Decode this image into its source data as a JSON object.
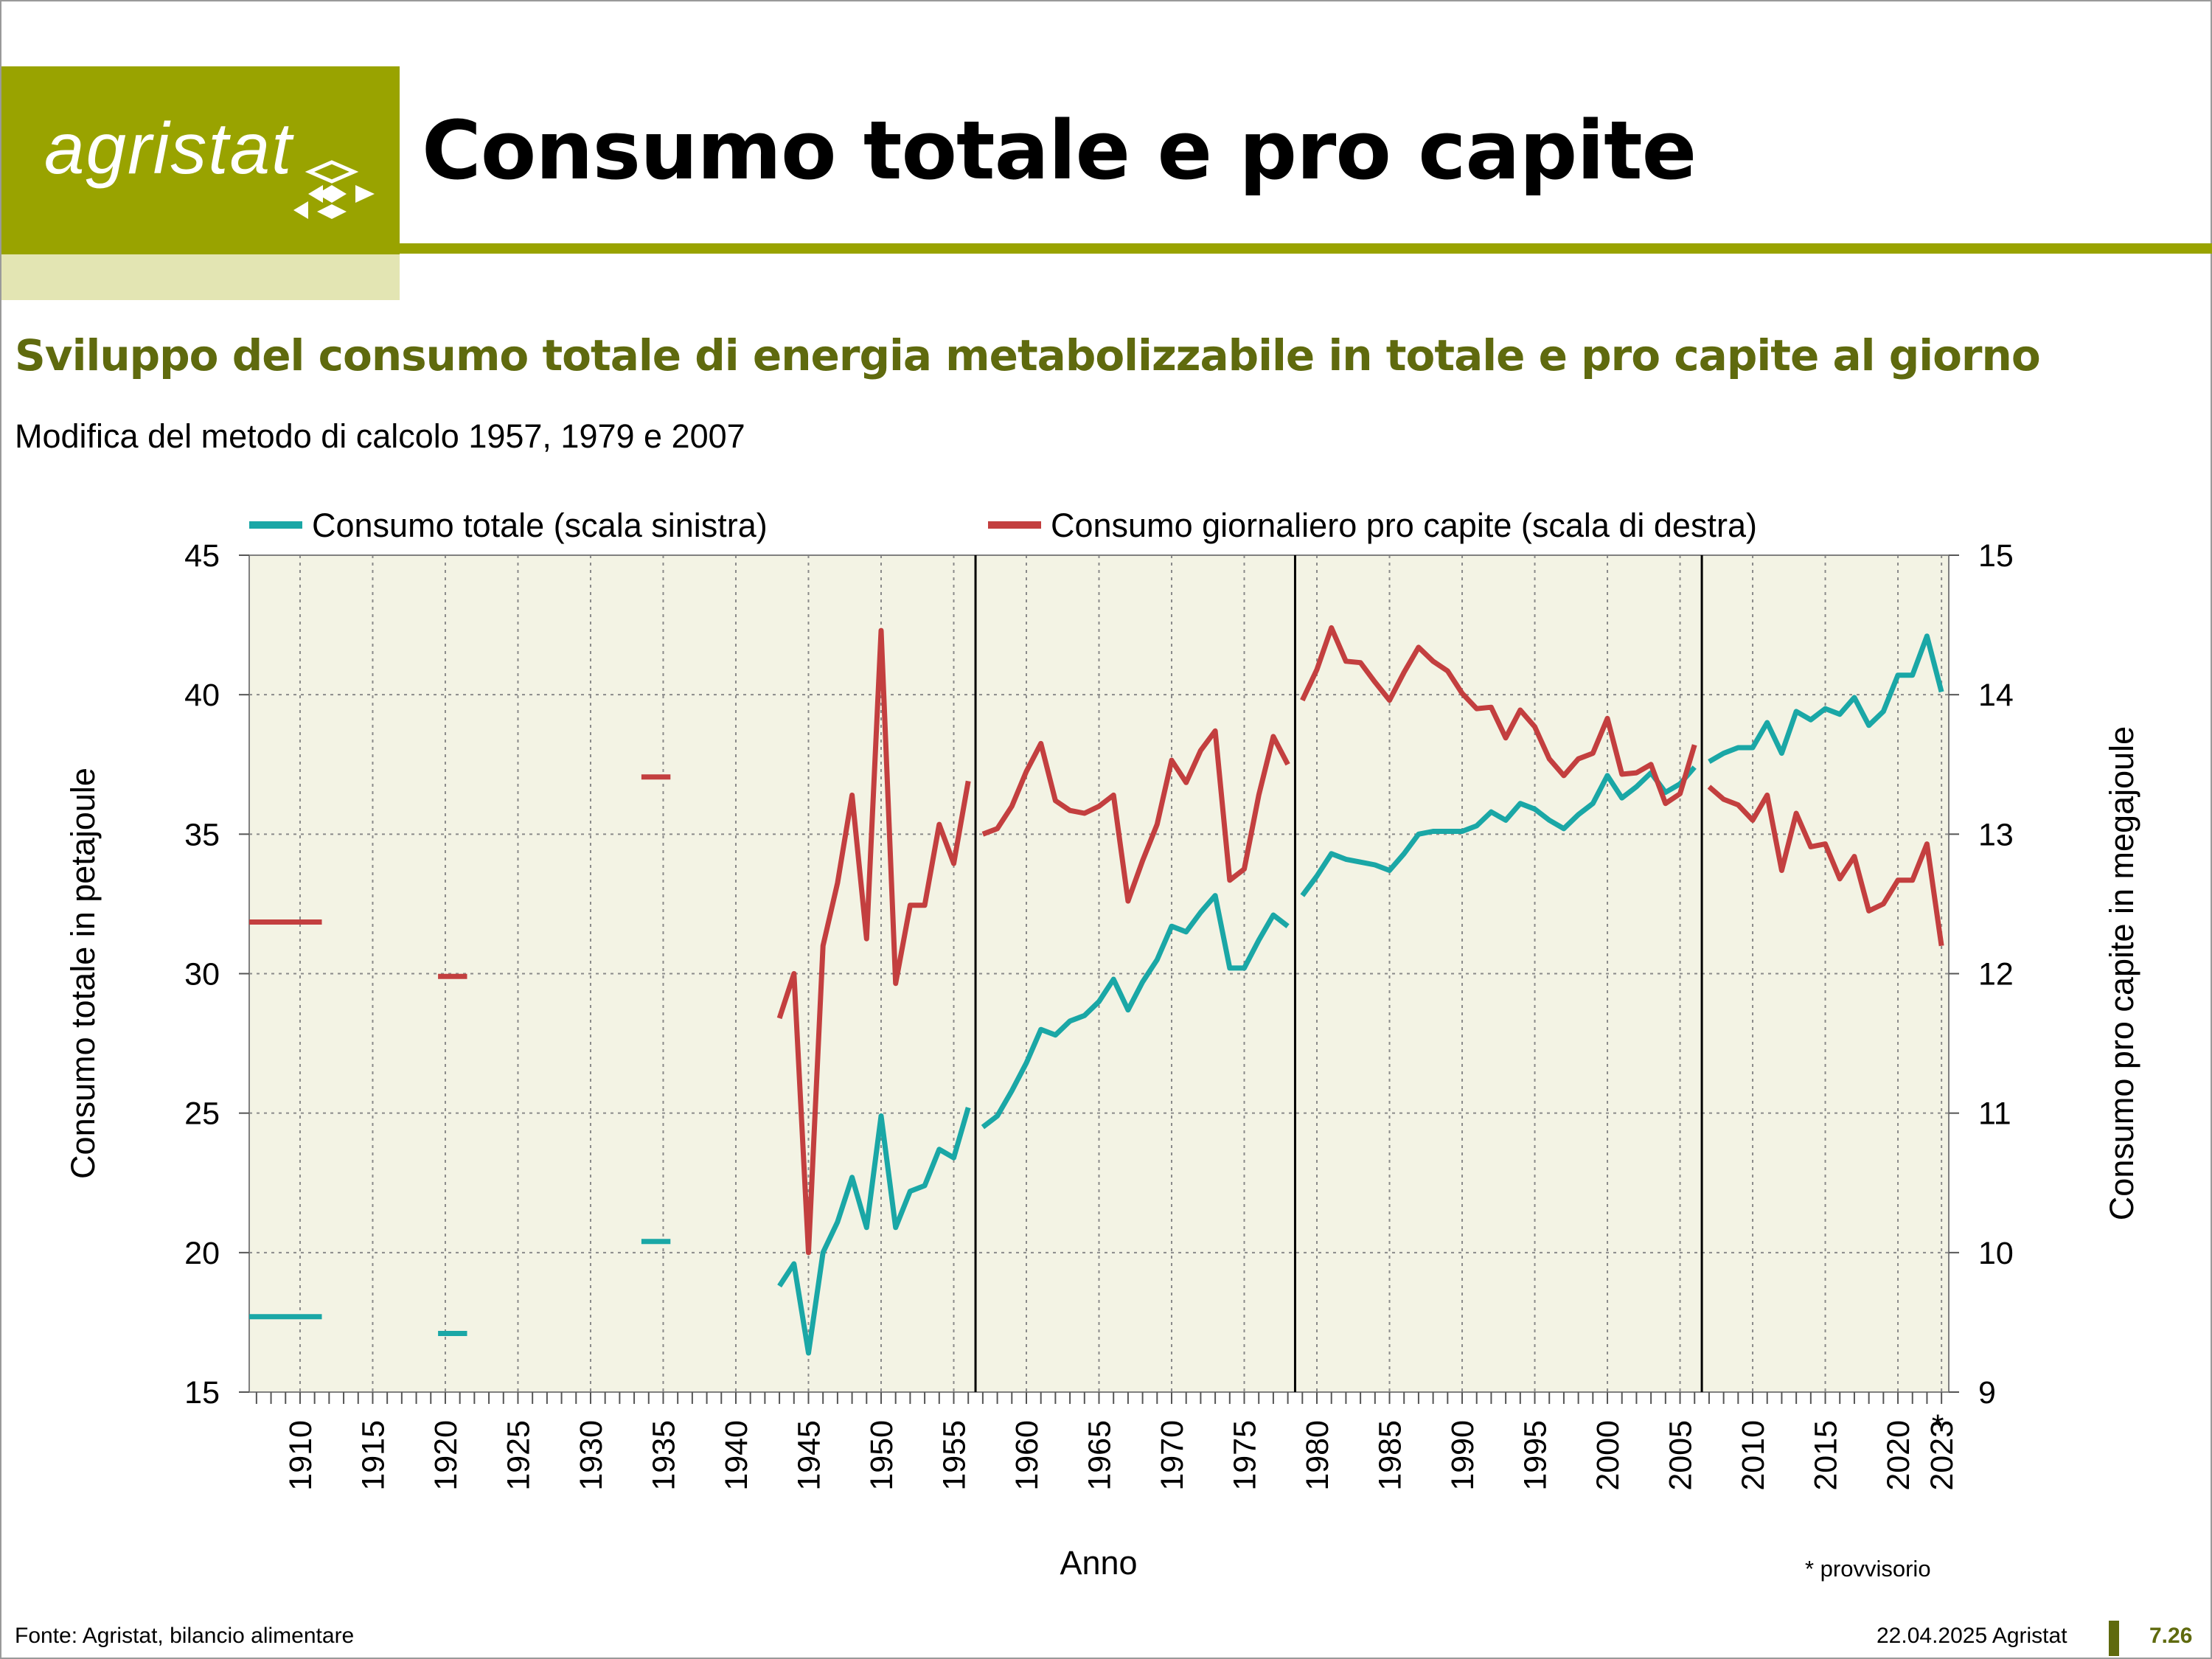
{
  "header": {
    "logo_text": "agristat",
    "title": "Consumo totale e pro capite"
  },
  "subtitle": "Sviluppo del consumo totale di energia metabolizzabile in totale e pro capite al giorno",
  "note": "Modifica del metodo di calcolo 1957, 1979 e 2007",
  "footer": {
    "source": "Fonte: Agristat, bilancio alimentare",
    "date": "22.04.2025 Agristat",
    "page": "7.26"
  },
  "colors": {
    "brand": "#99a300",
    "brand_light": "#e3e5b3",
    "subtitle": "#5f6a0e",
    "plot_bg": "#f3f3e4",
    "series_total": "#1aa7a6",
    "series_per_capita": "#c33f3f"
  },
  "chart_data": {
    "type": "line",
    "xlabel": "Anno",
    "ylabel_left": "Consumo totale in petajoule",
    "ylabel_right": "Consumo pro capite in megajoule",
    "xlim": [
      1906.5,
      2023.5
    ],
    "ylim_left": [
      15,
      45
    ],
    "ylim_right": [
      9,
      15
    ],
    "yticks_left": [
      15,
      20,
      25,
      30,
      35,
      40,
      45
    ],
    "yticks_right": [
      9,
      10,
      11,
      12,
      13,
      14,
      15
    ],
    "xticks": [
      1910,
      1915,
      1920,
      1925,
      1930,
      1935,
      1940,
      1945,
      1950,
      1955,
      1960,
      1965,
      1970,
      1975,
      1980,
      1985,
      1990,
      1995,
      2000,
      2005,
      2010,
      2015,
      2020,
      2023
    ],
    "xtick_labels": [
      "1910",
      "1915",
      "1920",
      "1925",
      "1930",
      "1935",
      "1940",
      "1945",
      "1950",
      "1955",
      "1960",
      "1965",
      "1970",
      "1975",
      "1980",
      "1985",
      "1990",
      "1995",
      "2000",
      "2005",
      "2010",
      "2015",
      "2020",
      "2023"
    ],
    "provisional_marker": "*",
    "provisional_note": "* provvisorio",
    "method_breaks": [
      1956.5,
      1978.5,
      2006.5
    ],
    "grid": true,
    "legend_position": "top",
    "series": [
      {
        "name": "Consumo totale (scala sinistra)",
        "axis": "left",
        "segments": [
          [
            [
              1906.5,
              17.7
            ],
            [
              1911.5,
              17.7
            ]
          ],
          [
            [
              1919.5,
              17.1
            ],
            [
              1921.5,
              17.1
            ]
          ],
          [
            [
              1933.5,
              20.4
            ],
            [
              1935.5,
              20.4
            ]
          ],
          [
            [
              1943,
              18.8
            ],
            [
              1944,
              19.6
            ],
            [
              1945,
              16.4
            ],
            [
              1946,
              20.0
            ],
            [
              1947,
              21.1
            ],
            [
              1948,
              22.7
            ],
            [
              1949,
              20.9
            ],
            [
              1950,
              24.9
            ],
            [
              1951,
              20.9
            ],
            [
              1952,
              22.2
            ],
            [
              1953,
              22.4
            ],
            [
              1954,
              23.7
            ],
            [
              1955,
              23.4
            ],
            [
              1956,
              25.2
            ]
          ],
          [
            [
              1957,
              24.5
            ],
            [
              1958,
              24.9
            ],
            [
              1959,
              25.8
            ],
            [
              1960,
              26.8
            ],
            [
              1961,
              28.0
            ],
            [
              1962,
              27.8
            ],
            [
              1963,
              28.3
            ],
            [
              1964,
              28.5
            ],
            [
              1965,
              29.0
            ],
            [
              1966,
              29.8
            ],
            [
              1967,
              28.7
            ],
            [
              1968,
              29.7
            ],
            [
              1969,
              30.5
            ],
            [
              1970,
              31.7
            ],
            [
              1971,
              31.5
            ],
            [
              1972,
              32.2
            ],
            [
              1973,
              32.8
            ],
            [
              1974,
              30.2
            ],
            [
              1975,
              30.2
            ],
            [
              1976,
              31.2
            ],
            [
              1977,
              32.1
            ],
            [
              1978,
              31.7
            ]
          ],
          [
            [
              1979,
              32.8
            ],
            [
              1980,
              33.5
            ],
            [
              1981,
              34.3
            ],
            [
              1982,
              34.1
            ],
            [
              1983,
              34.0
            ],
            [
              1984,
              33.9
            ],
            [
              1985,
              33.7
            ],
            [
              1986,
              34.3
            ],
            [
              1987,
              35.0
            ],
            [
              1988,
              35.1
            ],
            [
              1989,
              35.1
            ],
            [
              1990,
              35.1
            ],
            [
              1991,
              35.3
            ],
            [
              1992,
              35.8
            ],
            [
              1993,
              35.5
            ],
            [
              1994,
              36.1
            ],
            [
              1995,
              35.9
            ],
            [
              1996,
              35.5
            ],
            [
              1997,
              35.2
            ],
            [
              1998,
              35.7
            ],
            [
              1999,
              36.1
            ],
            [
              2000,
              37.1
            ],
            [
              2001,
              36.3
            ],
            [
              2002,
              36.7
            ],
            [
              2003,
              37.2
            ],
            [
              2004,
              36.5
            ],
            [
              2005,
              36.8
            ],
            [
              2006,
              37.4
            ]
          ],
          [
            [
              2007,
              37.6
            ],
            [
              2008,
              37.9
            ],
            [
              2009,
              38.1
            ],
            [
              2010,
              38.1
            ],
            [
              2011,
              39.0
            ],
            [
              2012,
              37.9
            ],
            [
              2013,
              39.4
            ],
            [
              2014,
              39.1
            ],
            [
              2015,
              39.5
            ],
            [
              2016,
              39.3
            ],
            [
              2017,
              39.9
            ],
            [
              2018,
              38.9
            ],
            [
              2019,
              39.4
            ],
            [
              2020,
              40.7
            ],
            [
              2021,
              40.7
            ],
            [
              2022,
              42.1
            ],
            [
              2023,
              40.1
            ]
          ]
        ]
      },
      {
        "name": "Consumo giornaliero pro capite (scala di destra)",
        "axis": "right",
        "segments": [
          [
            [
              1906.5,
              12.37
            ],
            [
              1911.5,
              12.37
            ]
          ],
          [
            [
              1919.5,
              11.98
            ],
            [
              1921.5,
              11.98
            ]
          ],
          [
            [
              1933.5,
              13.41
            ],
            [
              1935.5,
              13.41
            ]
          ],
          [
            [
              1943,
              11.68
            ],
            [
              1944,
              12.0
            ],
            [
              1945,
              10.0
            ],
            [
              1946,
              12.2
            ],
            [
              1947,
              12.65
            ],
            [
              1948,
              13.28
            ],
            [
              1949,
              12.25
            ],
            [
              1950,
              14.46
            ],
            [
              1951,
              11.93
            ],
            [
              1952,
              12.49
            ],
            [
              1953,
              12.49
            ],
            [
              1954,
              13.07
            ],
            [
              1955,
              12.79
            ],
            [
              1956,
              13.38
            ]
          ],
          [
            [
              1957,
              13.0
            ],
            [
              1958,
              13.04
            ],
            [
              1959,
              13.2
            ],
            [
              1960,
              13.45
            ],
            [
              1961,
              13.65
            ],
            [
              1962,
              13.24
            ],
            [
              1963,
              13.17
            ],
            [
              1964,
              13.15
            ],
            [
              1965,
              13.2
            ],
            [
              1966,
              13.28
            ],
            [
              1967,
              12.52
            ],
            [
              1968,
              12.81
            ],
            [
              1969,
              13.07
            ],
            [
              1970,
              13.53
            ],
            [
              1971,
              13.37
            ],
            [
              1972,
              13.6
            ],
            [
              1973,
              13.74
            ],
            [
              1974,
              12.67
            ],
            [
              1975,
              12.75
            ],
            [
              1976,
              13.28
            ],
            [
              1977,
              13.7
            ],
            [
              1978,
              13.5
            ]
          ],
          [
            [
              1979,
              13.96
            ],
            [
              1980,
              14.18
            ],
            [
              1981,
              14.48
            ],
            [
              1982,
              14.24
            ],
            [
              1983,
              14.23
            ],
            [
              1984,
              14.09
            ],
            [
              1985,
              13.96
            ],
            [
              1986,
              14.16
            ],
            [
              1987,
              14.34
            ],
            [
              1988,
              14.24
            ],
            [
              1989,
              14.17
            ],
            [
              1990,
              14.01
            ],
            [
              1991,
              13.9
            ],
            [
              1992,
              13.91
            ],
            [
              1993,
              13.69
            ],
            [
              1994,
              13.89
            ],
            [
              1995,
              13.77
            ],
            [
              1996,
              13.54
            ],
            [
              1997,
              13.42
            ],
            [
              1998,
              13.54
            ],
            [
              1999,
              13.58
            ],
            [
              2000,
              13.83
            ],
            [
              2001,
              13.43
            ],
            [
              2002,
              13.44
            ],
            [
              2003,
              13.5
            ],
            [
              2004,
              13.22
            ],
            [
              2005,
              13.29
            ],
            [
              2006,
              13.64
            ]
          ],
          [
            [
              2007,
              13.34
            ],
            [
              2008,
              13.25
            ],
            [
              2009,
              13.21
            ],
            [
              2010,
              13.1
            ],
            [
              2011,
              13.28
            ],
            [
              2012,
              12.74
            ],
            [
              2013,
              13.15
            ],
            [
              2014,
              12.91
            ],
            [
              2015,
              12.93
            ],
            [
              2016,
              12.68
            ],
            [
              2017,
              12.84
            ],
            [
              2018,
              12.45
            ],
            [
              2019,
              12.5
            ],
            [
              2020,
              12.67
            ],
            [
              2021,
              12.67
            ],
            [
              2022,
              12.93
            ],
            [
              2023,
              12.2
            ]
          ]
        ]
      }
    ]
  }
}
